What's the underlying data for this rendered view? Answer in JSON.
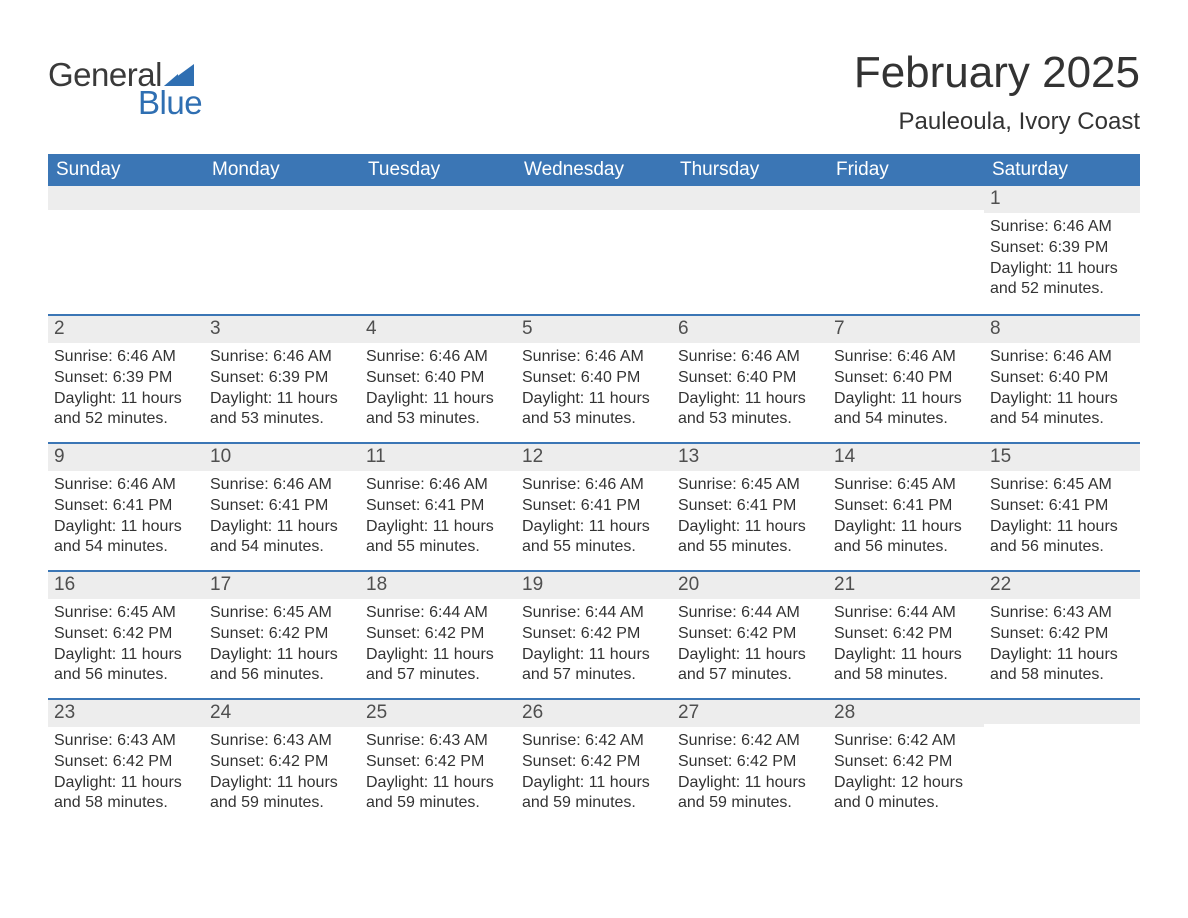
{
  "logo": {
    "text_general": "General",
    "text_blue": "Blue",
    "flag_color": "#2f6fb2"
  },
  "title": {
    "month_year": "February 2025",
    "location": "Pauleoula, Ivory Coast"
  },
  "colors": {
    "header_bg": "#3b76b5",
    "header_text": "#ffffff",
    "daynum_bg": "#ededed",
    "daynum_text": "#4f4f4f",
    "body_text": "#333333",
    "row_border": "#3b76b5",
    "page_bg": "#ffffff",
    "logo_general": "#3a3a3a",
    "logo_blue": "#2f6fb2"
  },
  "typography": {
    "title_fontsize": 44,
    "location_fontsize": 24,
    "dow_fontsize": 19,
    "daynum_fontsize": 19,
    "body_fontsize": 16,
    "font_family": "Arial"
  },
  "calendar": {
    "type": "table",
    "days_of_week": [
      "Sunday",
      "Monday",
      "Tuesday",
      "Wednesday",
      "Thursday",
      "Friday",
      "Saturday"
    ],
    "weeks": [
      [
        {
          "day": "",
          "sunrise": "",
          "sunset": "",
          "daylight": ""
        },
        {
          "day": "",
          "sunrise": "",
          "sunset": "",
          "daylight": ""
        },
        {
          "day": "",
          "sunrise": "",
          "sunset": "",
          "daylight": ""
        },
        {
          "day": "",
          "sunrise": "",
          "sunset": "",
          "daylight": ""
        },
        {
          "day": "",
          "sunrise": "",
          "sunset": "",
          "daylight": ""
        },
        {
          "day": "",
          "sunrise": "",
          "sunset": "",
          "daylight": ""
        },
        {
          "day": "1",
          "sunrise": "Sunrise: 6:46 AM",
          "sunset": "Sunset: 6:39 PM",
          "daylight": "Daylight: 11 hours and 52 minutes."
        }
      ],
      [
        {
          "day": "2",
          "sunrise": "Sunrise: 6:46 AM",
          "sunset": "Sunset: 6:39 PM",
          "daylight": "Daylight: 11 hours and 52 minutes."
        },
        {
          "day": "3",
          "sunrise": "Sunrise: 6:46 AM",
          "sunset": "Sunset: 6:39 PM",
          "daylight": "Daylight: 11 hours and 53 minutes."
        },
        {
          "day": "4",
          "sunrise": "Sunrise: 6:46 AM",
          "sunset": "Sunset: 6:40 PM",
          "daylight": "Daylight: 11 hours and 53 minutes."
        },
        {
          "day": "5",
          "sunrise": "Sunrise: 6:46 AM",
          "sunset": "Sunset: 6:40 PM",
          "daylight": "Daylight: 11 hours and 53 minutes."
        },
        {
          "day": "6",
          "sunrise": "Sunrise: 6:46 AM",
          "sunset": "Sunset: 6:40 PM",
          "daylight": "Daylight: 11 hours and 53 minutes."
        },
        {
          "day": "7",
          "sunrise": "Sunrise: 6:46 AM",
          "sunset": "Sunset: 6:40 PM",
          "daylight": "Daylight: 11 hours and 54 minutes."
        },
        {
          "day": "8",
          "sunrise": "Sunrise: 6:46 AM",
          "sunset": "Sunset: 6:40 PM",
          "daylight": "Daylight: 11 hours and 54 minutes."
        }
      ],
      [
        {
          "day": "9",
          "sunrise": "Sunrise: 6:46 AM",
          "sunset": "Sunset: 6:41 PM",
          "daylight": "Daylight: 11 hours and 54 minutes."
        },
        {
          "day": "10",
          "sunrise": "Sunrise: 6:46 AM",
          "sunset": "Sunset: 6:41 PM",
          "daylight": "Daylight: 11 hours and 54 minutes."
        },
        {
          "day": "11",
          "sunrise": "Sunrise: 6:46 AM",
          "sunset": "Sunset: 6:41 PM",
          "daylight": "Daylight: 11 hours and 55 minutes."
        },
        {
          "day": "12",
          "sunrise": "Sunrise: 6:46 AM",
          "sunset": "Sunset: 6:41 PM",
          "daylight": "Daylight: 11 hours and 55 minutes."
        },
        {
          "day": "13",
          "sunrise": "Sunrise: 6:45 AM",
          "sunset": "Sunset: 6:41 PM",
          "daylight": "Daylight: 11 hours and 55 minutes."
        },
        {
          "day": "14",
          "sunrise": "Sunrise: 6:45 AM",
          "sunset": "Sunset: 6:41 PM",
          "daylight": "Daylight: 11 hours and 56 minutes."
        },
        {
          "day": "15",
          "sunrise": "Sunrise: 6:45 AM",
          "sunset": "Sunset: 6:41 PM",
          "daylight": "Daylight: 11 hours and 56 minutes."
        }
      ],
      [
        {
          "day": "16",
          "sunrise": "Sunrise: 6:45 AM",
          "sunset": "Sunset: 6:42 PM",
          "daylight": "Daylight: 11 hours and 56 minutes."
        },
        {
          "day": "17",
          "sunrise": "Sunrise: 6:45 AM",
          "sunset": "Sunset: 6:42 PM",
          "daylight": "Daylight: 11 hours and 56 minutes."
        },
        {
          "day": "18",
          "sunrise": "Sunrise: 6:44 AM",
          "sunset": "Sunset: 6:42 PM",
          "daylight": "Daylight: 11 hours and 57 minutes."
        },
        {
          "day": "19",
          "sunrise": "Sunrise: 6:44 AM",
          "sunset": "Sunset: 6:42 PM",
          "daylight": "Daylight: 11 hours and 57 minutes."
        },
        {
          "day": "20",
          "sunrise": "Sunrise: 6:44 AM",
          "sunset": "Sunset: 6:42 PM",
          "daylight": "Daylight: 11 hours and 57 minutes."
        },
        {
          "day": "21",
          "sunrise": "Sunrise: 6:44 AM",
          "sunset": "Sunset: 6:42 PM",
          "daylight": "Daylight: 11 hours and 58 minutes."
        },
        {
          "day": "22",
          "sunrise": "Sunrise: 6:43 AM",
          "sunset": "Sunset: 6:42 PM",
          "daylight": "Daylight: 11 hours and 58 minutes."
        }
      ],
      [
        {
          "day": "23",
          "sunrise": "Sunrise: 6:43 AM",
          "sunset": "Sunset: 6:42 PM",
          "daylight": "Daylight: 11 hours and 58 minutes."
        },
        {
          "day": "24",
          "sunrise": "Sunrise: 6:43 AM",
          "sunset": "Sunset: 6:42 PM",
          "daylight": "Daylight: 11 hours and 59 minutes."
        },
        {
          "day": "25",
          "sunrise": "Sunrise: 6:43 AM",
          "sunset": "Sunset: 6:42 PM",
          "daylight": "Daylight: 11 hours and 59 minutes."
        },
        {
          "day": "26",
          "sunrise": "Sunrise: 6:42 AM",
          "sunset": "Sunset: 6:42 PM",
          "daylight": "Daylight: 11 hours and 59 minutes."
        },
        {
          "day": "27",
          "sunrise": "Sunrise: 6:42 AM",
          "sunset": "Sunset: 6:42 PM",
          "daylight": "Daylight: 11 hours and 59 minutes."
        },
        {
          "day": "28",
          "sunrise": "Sunrise: 6:42 AM",
          "sunset": "Sunset: 6:42 PM",
          "daylight": "Daylight: 12 hours and 0 minutes."
        },
        {
          "day": "",
          "sunrise": "",
          "sunset": "",
          "daylight": ""
        }
      ]
    ]
  }
}
